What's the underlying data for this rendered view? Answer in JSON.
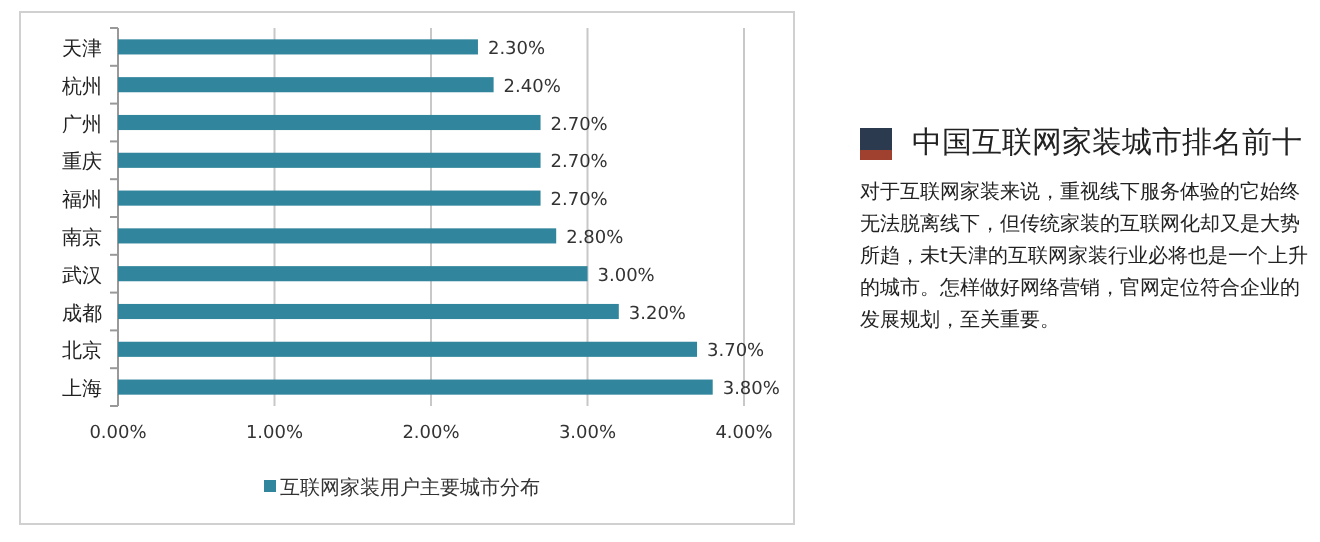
{
  "chart_data": [
    {
      "type": "bar",
      "orientation": "horizontal",
      "categories": [
        "天津",
        "杭州",
        "广州",
        "重庆",
        "福州",
        "南京",
        "武汉",
        "成都",
        "北京",
        "上海"
      ],
      "series": [
        {
          "name": "互联网家装用户主要城市分布",
          "color": "#31859c",
          "values": [
            2.3,
            2.4,
            2.7,
            2.7,
            2.7,
            2.8,
            3.0,
            3.2,
            3.7,
            3.8
          ],
          "value_labels": [
            "2.30%",
            "2.40%",
            "2.70%",
            "2.70%",
            "2.70%",
            "2.80%",
            "3.00%",
            "3.20%",
            "3.70%",
            "3.80%"
          ]
        }
      ],
      "xlim": [
        0,
        4
      ],
      "xticks": [
        {
          "value": 0,
          "label": "0.00%"
        },
        {
          "value": 1,
          "label": "1.00%"
        },
        {
          "value": 2,
          "label": "2.00%"
        },
        {
          "value": 3,
          "label": "3.00%"
        },
        {
          "value": 4,
          "label": "4.00%"
        }
      ],
      "grid": "x",
      "legend": "bottom"
    },
    {
      "type": "other",
      "title": "中国互联网家装城市排名前十",
      "annotations": [
        "对于互联网家装来说，重视线下服务体验的它始终无法脱离线下，但传统家装的互联网化却又是大势所趋，未t天津的互联网家装行业必将也是一个上升的城市。怎样做好网络营销，官网定位符合企业的发展规划，至关重要。"
      ]
    }
  ]
}
